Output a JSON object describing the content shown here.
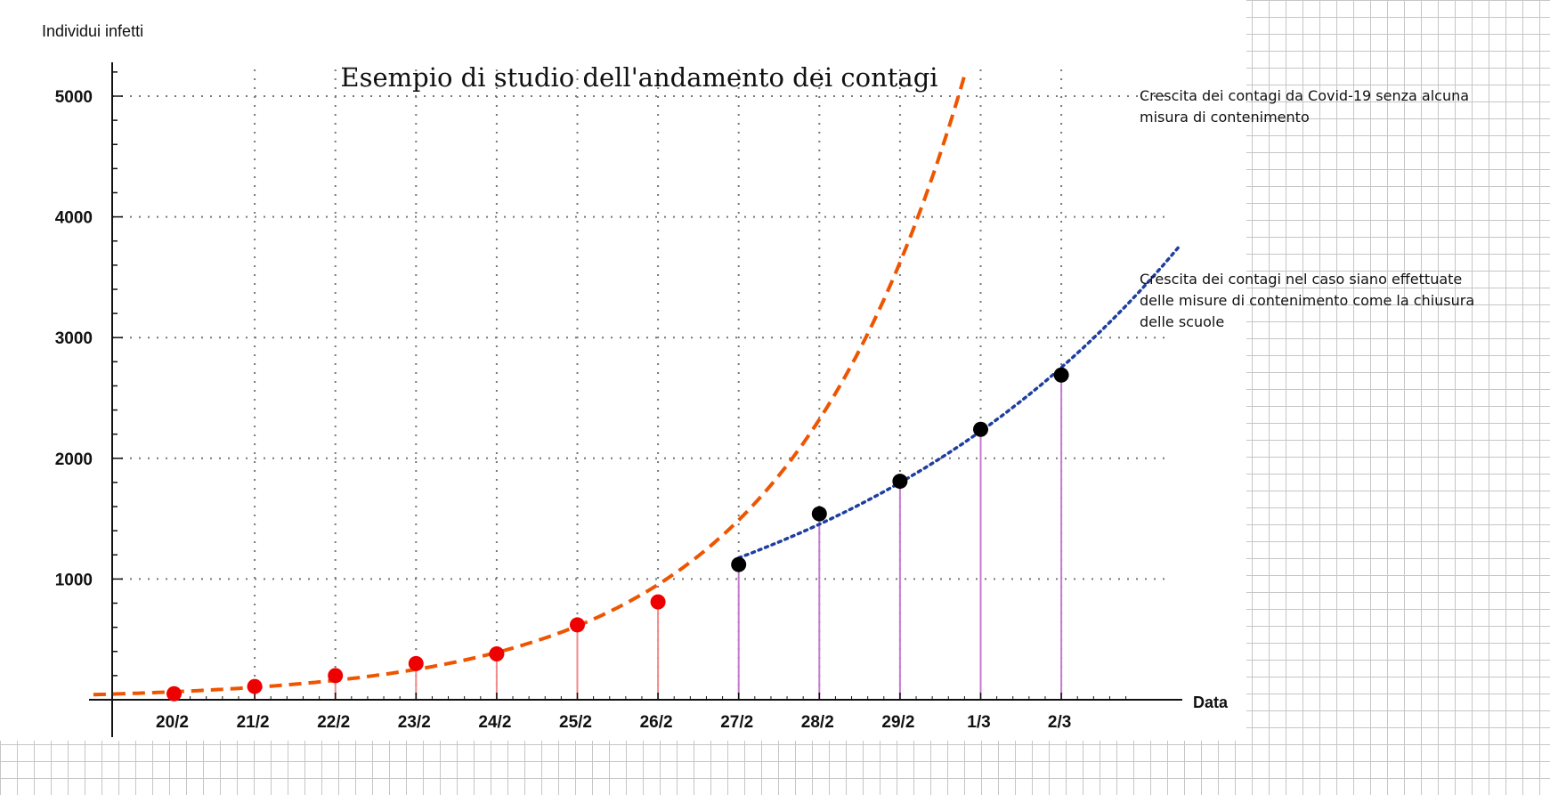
{
  "chart_data": {
    "type": "line",
    "title": "Esempio di studio dell'andamento dei contagi",
    "ylabel": "Individui infetti",
    "xlabel": "Data",
    "categories": [
      "20/2",
      "21/2",
      "22/2",
      "23/2",
      "24/2",
      "25/2",
      "26/2",
      "27/2",
      "28/2",
      "29/2",
      "1/3",
      "2/3"
    ],
    "ylim": [
      0,
      5300
    ],
    "yticks": [
      1000,
      2000,
      3000,
      4000,
      5000
    ],
    "grid": true,
    "series": [
      {
        "kind": "points",
        "color": "#ee0000",
        "stem_color": "#f08a8a",
        "x": [
          "20/2",
          "21/2",
          "22/2",
          "23/2",
          "24/2",
          "25/2",
          "26/2"
        ],
        "values": [
          50,
          110,
          200,
          300,
          380,
          620,
          810
        ]
      },
      {
        "kind": "points",
        "color": "#000000",
        "stem_color": "#c77bd0",
        "x": [
          "27/2",
          "28/2",
          "29/2",
          "1/3",
          "2/3"
        ],
        "values": [
          1120,
          1540,
          1810,
          2240,
          2690
        ]
      },
      {
        "kind": "fit",
        "style": "dashed",
        "color": "#ee5500",
        "description": "Crescita dei contagi da Covid-19 senza alcuna misura di contenimento"
      },
      {
        "kind": "fit",
        "style": "dotted",
        "color": "#1f3fa0",
        "description": "Crescita dei contagi nel caso siano effettuate delle misure di contenimento come la chiusura delle scuole"
      }
    ],
    "annotations": [
      {
        "lines": [
          "Crescita dei contagi da Covid-19 senza alcuna",
          "misura di contenimento"
        ]
      },
      {
        "lines": [
          "Crescita dei contagi nel caso siano effettuate",
          "delle misure di contenimento come la chiusura",
          "delle scuole"
        ]
      }
    ]
  }
}
